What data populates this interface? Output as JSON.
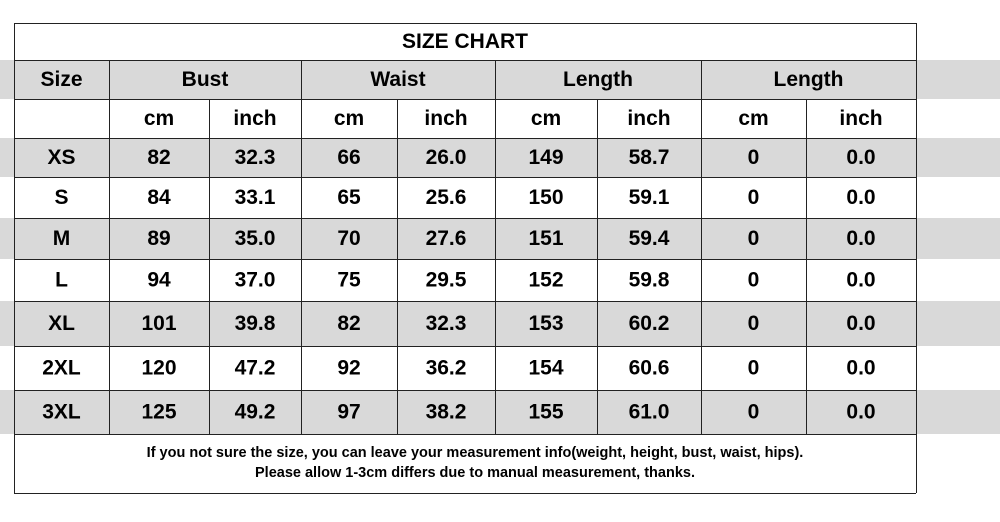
{
  "table": {
    "title": "SIZE CHART",
    "header": [
      "Size",
      "Bust",
      "Waist",
      "Length",
      "Length"
    ],
    "units": [
      "cm",
      "inch",
      "cm",
      "inch",
      "cm",
      "inch",
      "cm",
      "inch"
    ],
    "rows": [
      [
        "XS",
        "82",
        "32.3",
        "66",
        "26.0",
        "149",
        "58.7",
        "0",
        "0.0"
      ],
      [
        "S",
        "84",
        "33.1",
        "65",
        "25.6",
        "150",
        "59.1",
        "0",
        "0.0"
      ],
      [
        "M",
        "89",
        "35.0",
        "70",
        "27.6",
        "151",
        "59.4",
        "0",
        "0.0"
      ],
      [
        "L",
        "94",
        "37.0",
        "75",
        "29.5",
        "152",
        "59.8",
        "0",
        "0.0"
      ],
      [
        "XL",
        "101",
        "39.8",
        "82",
        "32.3",
        "153",
        "60.2",
        "0",
        "0.0"
      ],
      [
        "2XL",
        "120",
        "47.2",
        "92",
        "36.2",
        "154",
        "60.6",
        "0",
        "0.0"
      ],
      [
        "3XL",
        "125",
        "49.2",
        "97",
        "38.2",
        "155",
        "61.0",
        "0",
        "0.0"
      ]
    ],
    "footer": [
      "If you not sure the size, you can leave your measurement info(weight, height, bust, waist, hips).",
      "Please allow 1-3cm differs due to manual measurement, thanks."
    ]
  }
}
